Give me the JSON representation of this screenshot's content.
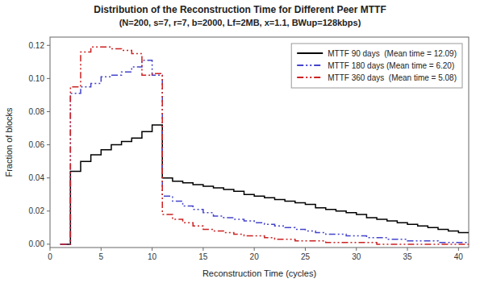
{
  "chart_data": {
    "type": "line",
    "title": "Distribution of the Reconstruction Time for Different Peer MTTF",
    "subtitle": "(N=200, s=7, r=7, b=2000, Lf=2MB, x=1.1, BWup=128kbps)",
    "x_label": "Reconstruction Time (cycles)",
    "y_label": "Fraction of blocks",
    "xlim": [
      0,
      41
    ],
    "ylim": [
      -0.002,
      0.125
    ],
    "xticks": [
      0,
      5,
      10,
      15,
      20,
      25,
      30,
      35,
      40
    ],
    "yticks": [
      {
        "value": 0.0,
        "label": "0.00"
      },
      0.02,
      0.04,
      0.06,
      0.08,
      {
        "value": 0.1,
        "label": "0.10"
      },
      0.12
    ],
    "grid": false,
    "legend": "upper right",
    "x": [
      1,
      2,
      2,
      3,
      3,
      4,
      4,
      5,
      5,
      6,
      6,
      7,
      7,
      8,
      8,
      9,
      9,
      10,
      10,
      11,
      11,
      12,
      12,
      13,
      13,
      14,
      14,
      15,
      15,
      16,
      16,
      17,
      17,
      18,
      18,
      19,
      19,
      20,
      20,
      21,
      21,
      22,
      22,
      23,
      23,
      24,
      24,
      25,
      25,
      26,
      26,
      27,
      27,
      28,
      28,
      29,
      29,
      30,
      30,
      31,
      31,
      32,
      32,
      33,
      33,
      34,
      34,
      35,
      35,
      36,
      36,
      37,
      37,
      38,
      38,
      39,
      39,
      40,
      40,
      41
    ],
    "series": [
      {
        "name": "MTTF 90 days  (Mean time = 12.09)",
        "color": "#000000",
        "line_style": "solid",
        "values": [
          0.0,
          0.0,
          0.044,
          0.044,
          0.05,
          0.05,
          0.054,
          0.054,
          0.057,
          0.057,
          0.06,
          0.06,
          0.062,
          0.062,
          0.064,
          0.064,
          0.068,
          0.068,
          0.072,
          0.072,
          0.04,
          0.04,
          0.038,
          0.038,
          0.037,
          0.037,
          0.036,
          0.036,
          0.035,
          0.035,
          0.034,
          0.034,
          0.033,
          0.033,
          0.032,
          0.032,
          0.03,
          0.03,
          0.029,
          0.029,
          0.028,
          0.028,
          0.027,
          0.027,
          0.026,
          0.026,
          0.025,
          0.025,
          0.024,
          0.024,
          0.022,
          0.022,
          0.021,
          0.021,
          0.02,
          0.02,
          0.019,
          0.019,
          0.018,
          0.018,
          0.016,
          0.016,
          0.015,
          0.015,
          0.014,
          0.014,
          0.013,
          0.013,
          0.012,
          0.012,
          0.011,
          0.011,
          0.01,
          0.01,
          0.009,
          0.009,
          0.008,
          0.008,
          0.007,
          0.007
        ]
      },
      {
        "name": "MTTF 180 days (Mean time = 6.20)",
        "color": "#4444cc",
        "line_style": "dashdotdot",
        "values": [
          0.0,
          0.0,
          0.091,
          0.091,
          0.095,
          0.095,
          0.097,
          0.097,
          0.101,
          0.101,
          0.102,
          0.102,
          0.104,
          0.104,
          0.107,
          0.107,
          0.111,
          0.111,
          0.102,
          0.102,
          0.029,
          0.029,
          0.026,
          0.026,
          0.023,
          0.023,
          0.021,
          0.021,
          0.019,
          0.019,
          0.017,
          0.017,
          0.016,
          0.016,
          0.015,
          0.015,
          0.014,
          0.014,
          0.013,
          0.013,
          0.012,
          0.012,
          0.011,
          0.011,
          0.01,
          0.01,
          0.009,
          0.009,
          0.008,
          0.008,
          0.007,
          0.007,
          0.006,
          0.006,
          0.006,
          0.006,
          0.005,
          0.005,
          0.005,
          0.005,
          0.004,
          0.004,
          0.004,
          0.004,
          0.003,
          0.003,
          0.003,
          0.003,
          0.002,
          0.002,
          0.002,
          0.002,
          0.002,
          0.002,
          0.001,
          0.001,
          0.001,
          0.001,
          0.001,
          0.001
        ]
      },
      {
        "name": "MTTF 360 days  (Mean time = 5.08)",
        "color": "#cc2222",
        "line_style": "dashdotdot",
        "values": [
          0.0,
          0.0,
          0.095,
          0.095,
          0.116,
          0.116,
          0.119,
          0.119,
          0.119,
          0.119,
          0.118,
          0.118,
          0.117,
          0.117,
          0.115,
          0.115,
          0.102,
          0.102,
          0.103,
          0.103,
          0.018,
          0.018,
          0.015,
          0.015,
          0.013,
          0.013,
          0.011,
          0.011,
          0.009,
          0.009,
          0.008,
          0.008,
          0.007,
          0.007,
          0.006,
          0.006,
          0.005,
          0.005,
          0.005,
          0.005,
          0.004,
          0.004,
          0.003,
          0.003,
          0.003,
          0.003,
          0.002,
          0.002,
          0.002,
          0.002,
          0.002,
          0.002,
          0.001,
          0.001,
          0.001,
          0.001,
          0.001,
          0.001,
          0.001,
          0.001,
          0.001,
          0.001,
          0.0,
          0.0,
          0.0,
          0.0,
          0.0,
          0.0,
          0.0,
          0.0,
          0.0,
          0.0,
          0.0,
          0.0,
          0.0,
          0.0,
          0.0,
          0.0,
          0.0,
          0.0
        ]
      }
    ]
  }
}
